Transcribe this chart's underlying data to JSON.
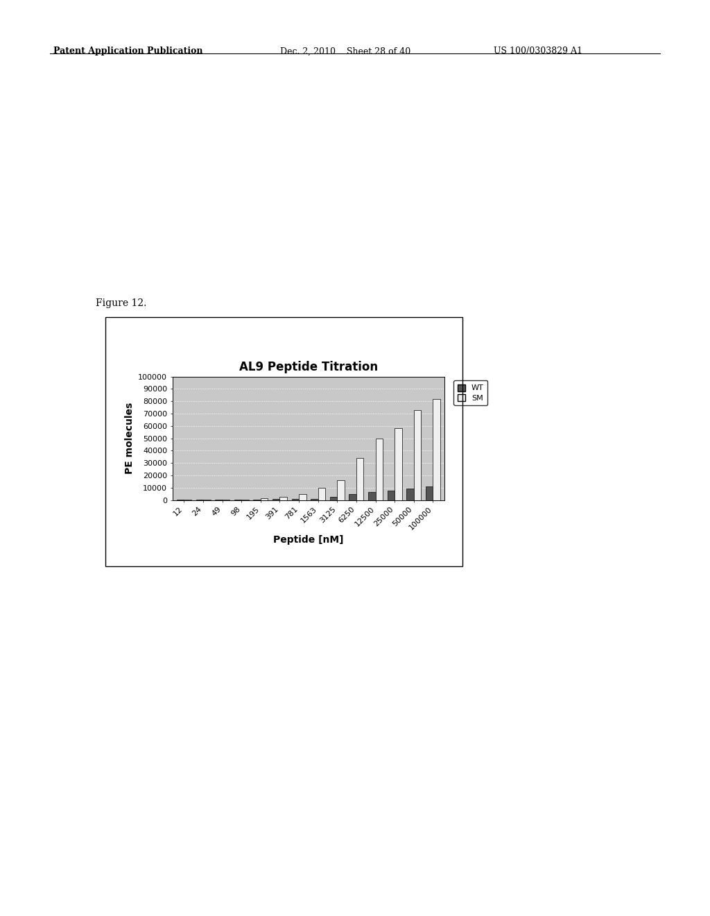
{
  "title": "AL9 Peptide Titration",
  "xlabel": "Peptide [nM]",
  "ylabel": "PE molecules",
  "categories": [
    "12",
    "24",
    "49",
    "98",
    "195",
    "391",
    "781",
    "1563",
    "3125",
    "6250",
    "12500",
    "25000",
    "50000",
    "100000"
  ],
  "wt_values": [
    150,
    150,
    400,
    400,
    600,
    700,
    900,
    1200,
    2800,
    4800,
    6500,
    7500,
    9500,
    11000
  ],
  "sm_values": [
    150,
    200,
    400,
    600,
    1800,
    2500,
    5000,
    10000,
    16000,
    34000,
    50000,
    58000,
    73000,
    82000
  ],
  "wt_color": "#555555",
  "sm_color": "#f0f0f0",
  "wt_edgecolor": "#000000",
  "sm_edgecolor": "#000000",
  "ylim": [
    0,
    100000
  ],
  "yticks": [
    0,
    10000,
    20000,
    30000,
    40000,
    50000,
    60000,
    70000,
    80000,
    90000,
    100000
  ],
  "plot_bg_color": "#c8c8c8",
  "outer_background": "#ffffff",
  "title_fontsize": 12,
  "axis_fontsize": 10,
  "tick_fontsize": 8,
  "legend_fontsize": 8,
  "bar_width": 0.38,
  "figure_caption": "Figure 12.",
  "header_left": "Patent Application Publication",
  "header_center": "Dec. 2, 2010    Sheet 28 of 40",
  "header_right": "US 100/0303829 A1"
}
